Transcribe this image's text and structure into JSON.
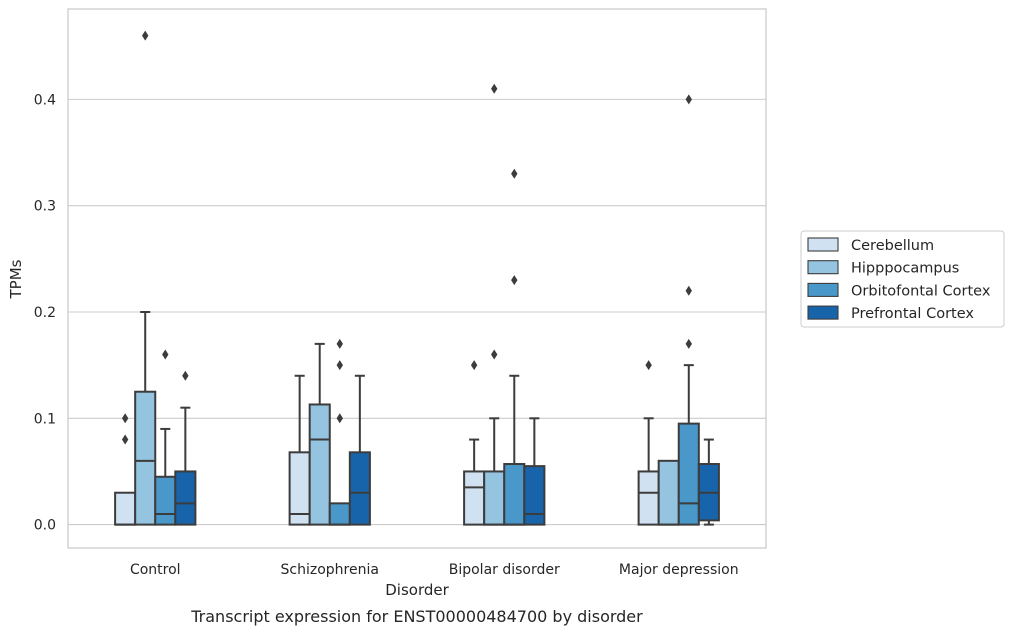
{
  "caption": "Transcript expression for ENST00000484700 by disorder",
  "chart_data": {
    "type": "box",
    "title": "",
    "xlabel": "Disorder",
    "ylabel": "TPMs",
    "ylim": [
      -0.022,
      0.485
    ],
    "yticks": [
      "0.0",
      "0.1",
      "0.2",
      "0.3",
      "0.4"
    ],
    "ytick_values": [
      0.0,
      0.1,
      0.2,
      0.3,
      0.4
    ],
    "grid": "horizontal",
    "legend_position": "right",
    "categories": [
      "Control",
      "Schizophrenia",
      "Bipolar disorder",
      "Major depression"
    ],
    "series": [
      {
        "name": "Cerebellum",
        "color": "#d0e1f2",
        "boxes": [
          {
            "q1": 0.0,
            "median": 0.0,
            "q3": 0.03,
            "whisker_low": 0.0,
            "whisker_high": 0.03,
            "outliers": [
              0.08,
              0.1
            ]
          },
          {
            "q1": 0.0,
            "median": 0.01,
            "q3": 0.068,
            "whisker_low": 0.0,
            "whisker_high": 0.14,
            "outliers": []
          },
          {
            "q1": 0.0,
            "median": 0.035,
            "q3": 0.05,
            "whisker_low": 0.0,
            "whisker_high": 0.08,
            "outliers": [
              0.15
            ]
          },
          {
            "q1": 0.0,
            "median": 0.03,
            "q3": 0.05,
            "whisker_low": 0.0,
            "whisker_high": 0.1,
            "outliers": [
              0.15
            ]
          }
        ]
      },
      {
        "name": "Hipppocampus",
        "color": "#94c4df",
        "boxes": [
          {
            "q1": 0.0,
            "median": 0.06,
            "q3": 0.125,
            "whisker_low": 0.0,
            "whisker_high": 0.2,
            "outliers": [
              0.46
            ]
          },
          {
            "q1": 0.0,
            "median": 0.08,
            "q3": 0.113,
            "whisker_low": 0.0,
            "whisker_high": 0.17,
            "outliers": []
          },
          {
            "q1": 0.0,
            "median": 0.0,
            "q3": 0.05,
            "whisker_low": 0.0,
            "whisker_high": 0.1,
            "outliers": [
              0.16,
              0.41
            ]
          },
          {
            "q1": 0.0,
            "median": 0.0,
            "q3": 0.06,
            "whisker_low": 0.0,
            "whisker_high": 0.06,
            "outliers": []
          }
        ]
      },
      {
        "name": "Orbitofontal Cortex",
        "color": "#4a98c9",
        "boxes": [
          {
            "q1": 0.0,
            "median": 0.01,
            "q3": 0.045,
            "whisker_low": 0.0,
            "whisker_high": 0.09,
            "outliers": [
              0.16
            ]
          },
          {
            "q1": 0.0,
            "median": 0.0,
            "q3": 0.02,
            "whisker_low": 0.0,
            "whisker_high": 0.02,
            "outliers": [
              0.1,
              0.15,
              0.17
            ]
          },
          {
            "q1": 0.0,
            "median": 0.0,
            "q3": 0.057,
            "whisker_low": 0.0,
            "whisker_high": 0.14,
            "outliers": [
              0.23,
              0.33
            ]
          },
          {
            "q1": 0.0,
            "median": 0.02,
            "q3": 0.095,
            "whisker_low": 0.0,
            "whisker_high": 0.15,
            "outliers": [
              0.17,
              0.22,
              0.4
            ]
          }
        ]
      },
      {
        "name": "Prefrontal Cortex",
        "color": "#1764ab",
        "boxes": [
          {
            "q1": 0.0,
            "median": 0.02,
            "q3": 0.05,
            "whisker_low": 0.0,
            "whisker_high": 0.11,
            "outliers": [
              0.14
            ]
          },
          {
            "q1": 0.0,
            "median": 0.03,
            "q3": 0.068,
            "whisker_low": 0.0,
            "whisker_high": 0.14,
            "outliers": []
          },
          {
            "q1": 0.0,
            "median": 0.01,
            "q3": 0.055,
            "whisker_low": 0.0,
            "whisker_high": 0.1,
            "outliers": []
          },
          {
            "q1": 0.004,
            "median": 0.03,
            "q3": 0.057,
            "whisker_low": 0.0,
            "whisker_high": 0.08,
            "outliers": []
          }
        ]
      }
    ]
  }
}
